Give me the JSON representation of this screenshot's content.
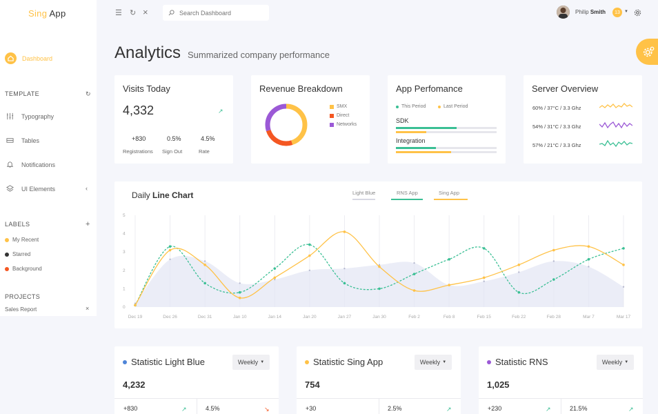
{
  "app": {
    "logo_accent": "Sing",
    "logo_rest": "App"
  },
  "sidebar": {
    "dashboard": "Dashboard",
    "template_header": "TEMPLATE",
    "items": [
      {
        "label": "Typography",
        "icon": "typography-icon"
      },
      {
        "label": "Tables",
        "icon": "tables-icon"
      },
      {
        "label": "Notifications",
        "icon": "bell-icon"
      },
      {
        "label": "UI Elements",
        "icon": "layers-icon"
      }
    ],
    "labels_header": "LABELS",
    "labels": [
      {
        "label": "My Recent",
        "color": "#ffc247"
      },
      {
        "label": "Starred",
        "color": "#333333"
      },
      {
        "label": "Background",
        "color": "#f45722"
      }
    ],
    "projects_header": "PROJECTS",
    "projects": [
      {
        "label": "Sales Report"
      }
    ]
  },
  "header": {
    "search_placeholder": "Search Dashboard",
    "user_first": "Philip",
    "user_last": "Smith",
    "notif_count": "13"
  },
  "page": {
    "title": "Analytics",
    "subtitle": "Summarized company performance"
  },
  "visits": {
    "title": "Visits Today",
    "value": "4,332",
    "stats": [
      {
        "value": "+830",
        "label": "Registrations"
      },
      {
        "value": "0.5%",
        "label": "Sign Out"
      },
      {
        "value": "4.5%",
        "label": "Rate"
      }
    ]
  },
  "revenue": {
    "title": "Revenue Breakdown",
    "legend": [
      {
        "label": "SMX",
        "color": "#ffc247",
        "share": 0.45
      },
      {
        "label": "Direct",
        "color": "#f45722",
        "share": 0.25
      },
      {
        "label": "Networks",
        "color": "#9b59d6",
        "share": 0.3
      }
    ]
  },
  "app_perf": {
    "title": "App Perfomance",
    "legend": [
      {
        "label": "This Period",
        "color": "#3abf94"
      },
      {
        "label": "Last Period",
        "color": "#ffc247"
      }
    ],
    "rows": [
      {
        "label": "SDK",
        "this": 0.6,
        "last": 0.3
      },
      {
        "label": "Integration",
        "this": 0.4,
        "last": 0.55
      }
    ]
  },
  "server": {
    "title": "Server Overview",
    "rows": [
      {
        "label": "60% / 37°C / 3.3 Ghz",
        "color": "#ffc247"
      },
      {
        "label": "54% / 31°C / 3.3 Ghz",
        "color": "#9b59d6"
      },
      {
        "label": "57% / 21°C / 3.3 Ghz",
        "color": "#3abf94"
      }
    ]
  },
  "line_chart": {
    "title_prefix": "Daily",
    "title_bold": "Line Chart",
    "tabs": [
      "Light Blue",
      "RNS App",
      "Sing App"
    ]
  },
  "chart_data": {
    "type": "line",
    "x": [
      "Dec 19",
      "Dec 26",
      "Dec 31",
      "Jan 10",
      "Jan 14",
      "Jan 20",
      "Jan 27",
      "Jan 30",
      "Feb 2",
      "Feb 8",
      "Feb 15",
      "Feb 22",
      "Feb 28",
      "Mar 7",
      "Mar 17"
    ],
    "ylim": [
      0,
      5
    ],
    "yticks": [
      "0",
      "1",
      "2",
      "3",
      "4",
      "5"
    ],
    "grid": true,
    "series": [
      {
        "name": "Light Blue",
        "color": "#e3e5f3",
        "type": "area",
        "values": [
          0.2,
          2.6,
          2.5,
          1.3,
          1.5,
          2.0,
          2.1,
          2.3,
          2.4,
          1.2,
          1.4,
          1.9,
          2.5,
          2.2,
          1.1
        ]
      },
      {
        "name": "RNS App",
        "color": "#3abf94",
        "style": "dashed",
        "values": [
          0.1,
          3.3,
          1.3,
          0.8,
          2.1,
          3.4,
          1.3,
          1.0,
          1.8,
          2.6,
          3.2,
          0.8,
          1.5,
          2.6,
          3.2
        ]
      },
      {
        "name": "Sing App",
        "color": "#ffc247",
        "values": [
          0.1,
          3.1,
          2.3,
          0.5,
          1.6,
          2.8,
          4.1,
          2.2,
          0.9,
          1.2,
          1.6,
          2.3,
          3.1,
          3.3,
          2.3
        ]
      }
    ]
  },
  "stats": [
    {
      "title": "Statistic Light Blue",
      "color": "#4e85d8",
      "dropdown": "Weekly",
      "value": "4,232",
      "a": "+830",
      "b": "4.5%"
    },
    {
      "title": "Statistic Sing App",
      "color": "#ffc247",
      "dropdown": "Weekly",
      "value": "754",
      "a": "+30",
      "b": "2.5%"
    },
    {
      "title": "Statistic RNS",
      "color": "#9b59d6",
      "dropdown": "Weekly",
      "value": "1,025",
      "a": "+230",
      "b": "21.5%"
    }
  ]
}
